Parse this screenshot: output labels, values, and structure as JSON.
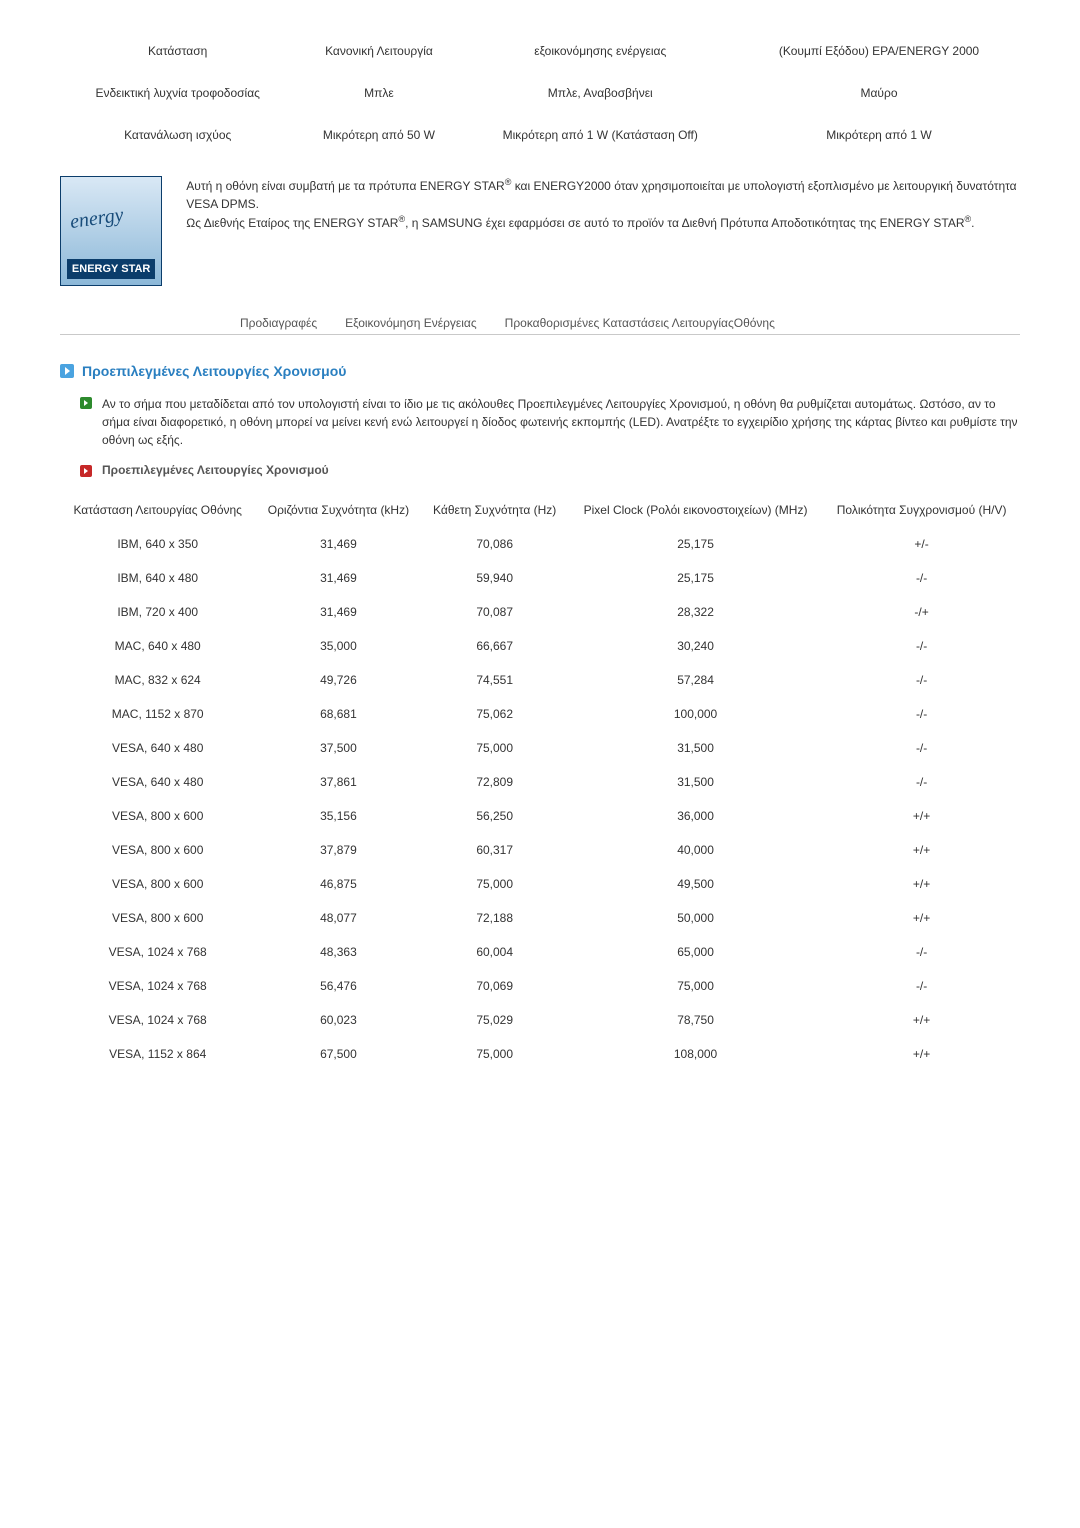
{
  "top_table": {
    "rows": [
      {
        "c1": "Κατάσταση",
        "c2": "Κανονική Λειτουργία",
        "c3": "εξοικονόμησης ενέργειας",
        "c4": "(Κουμπί Εξόδου) EPA/ENERGY 2000"
      },
      {
        "c1": "Ενδεικτική λυχνία τροφοδοσίας",
        "c2": "Μπλε",
        "c3": "Μπλε, Αναβοσβήνει",
        "c4": "Μαύρο"
      },
      {
        "c1": "Κατανάλωση ισχύος",
        "c2": "Μικρότερη από 50 W",
        "c3": "Μικρότερη από 1 W (Κατάσταση Off)",
        "c4": "Μικρότερη από 1 W"
      }
    ]
  },
  "energy_logo": {
    "script": "energy",
    "band": "ENERGY STAR"
  },
  "energy_text": {
    "p1a": "Αυτή η οθόνη είναι συμβατή με τα πρότυπα ENERGY STAR",
    "p1b": " και ENERGY2000 όταν χρησιμοποιείται με υπολογιστή εξοπλισμένο με λειτουργική δυνατότητα VESA DPMS.",
    "p2a": "Ως Διεθνής Εταίρος της ENERGY STAR",
    "p2b": ", η SAMSUNG έχει εφαρμόσει σε αυτό το προϊόν τα Διεθνή Πρότυπα Αποδοτικότητας της ENERGY STAR",
    "sup": "®",
    "dot": "."
  },
  "tabs": {
    "t1": "Προδιαγραφές",
    "t2": "Εξοικονόμηση Ενέργειας",
    "t3": "Προκαθορισμένες Καταστάσεις ΛειτουργίαςΟθόνης"
  },
  "section_title": "Προεπιλεγμένες Λειτουργίες Χρονισμού",
  "intro_para": "Αν το σήμα που μεταδίδεται από τον υπολογιστή είναι το ίδιο με τις ακόλουθες Προεπιλεγμένες Λειτουργίες Χρονισμού, η οθόνη θα ρυθμίζεται αυτομάτως. Ωστόσο, αν το σήμα είναι διαφορετικό, η οθόνη μπορεί να μείνει κενή ενώ λειτουργεί η δίοδος φωτεινής εκπομπής (LED). Ανατρέξτε το εγχειρίδιο χρήσης της κάρτας βίντεο και ρυθμίστε την οθόνη ως εξής.",
  "sub_head": "Προεπιλεγμένες Λειτουργίες Χρονισμού",
  "modes_headers": {
    "h1": "Κατάσταση Λειτουργίας Οθόνης",
    "h2": "Οριζόντια Συχνότητα (kHz)",
    "h3": "Κάθετη Συχνότητα (Hz)",
    "h4": "Pixel Clock (Ρολόι εικονοστοιχείων) (MHz)",
    "h5": "Πολικότητα Συγχρονισμού (H/V)"
  },
  "modes_rows": [
    {
      "mode": "IBM, 640 x 350",
      "hf": "31,469",
      "vf": "70,086",
      "pc": "25,175",
      "pol": "+/-"
    },
    {
      "mode": "IBM, 640 x 480",
      "hf": "31,469",
      "vf": "59,940",
      "pc": "25,175",
      "pol": "-/-"
    },
    {
      "mode": "IBM, 720 x 400",
      "hf": "31,469",
      "vf": "70,087",
      "pc": "28,322",
      "pol": "-/+"
    },
    {
      "mode": "MAC, 640 x 480",
      "hf": "35,000",
      "vf": "66,667",
      "pc": "30,240",
      "pol": "-/-"
    },
    {
      "mode": "MAC, 832 x 624",
      "hf": "49,726",
      "vf": "74,551",
      "pc": "57,284",
      "pol": "-/-"
    },
    {
      "mode": "MAC, 1152 x 870",
      "hf": "68,681",
      "vf": "75,062",
      "pc": "100,000",
      "pol": "-/-"
    },
    {
      "mode": "VESA, 640 x 480",
      "hf": "37,500",
      "vf": "75,000",
      "pc": "31,500",
      "pol": "-/-"
    },
    {
      "mode": "VESA, 640 x 480",
      "hf": "37,861",
      "vf": "72,809",
      "pc": "31,500",
      "pol": "-/-"
    },
    {
      "mode": "VESA, 800 x 600",
      "hf": "35,156",
      "vf": "56,250",
      "pc": "36,000",
      "pol": "+/+"
    },
    {
      "mode": "VESA, 800 x 600",
      "hf": "37,879",
      "vf": "60,317",
      "pc": "40,000",
      "pol": "+/+"
    },
    {
      "mode": "VESA, 800 x 600",
      "hf": "46,875",
      "vf": "75,000",
      "pc": "49,500",
      "pol": "+/+"
    },
    {
      "mode": "VESA, 800 x 600",
      "hf": "48,077",
      "vf": "72,188",
      "pc": "50,000",
      "pol": "+/+"
    },
    {
      "mode": "VESA, 1024 x 768",
      "hf": "48,363",
      "vf": "60,004",
      "pc": "65,000",
      "pol": "-/-"
    },
    {
      "mode": "VESA, 1024 x 768",
      "hf": "56,476",
      "vf": "70,069",
      "pc": "75,000",
      "pol": "-/-"
    },
    {
      "mode": "VESA, 1024 x 768",
      "hf": "60,023",
      "vf": "75,029",
      "pc": "78,750",
      "pol": "+/+"
    },
    {
      "mode": "VESA, 1152 x 864",
      "hf": "67,500",
      "vf": "75,000",
      "pc": "108,000",
      "pol": "+/+"
    }
  ]
}
